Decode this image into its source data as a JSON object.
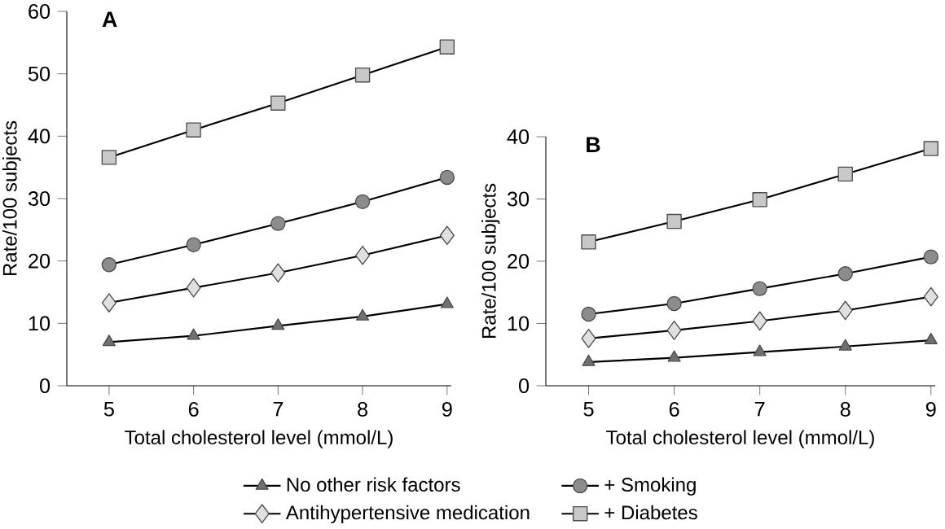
{
  "chart_data": [
    {
      "type": "line",
      "title": "A",
      "xlabel": "Total cholesterol level (mmol/L)",
      "ylabel": "Rate/100 subjects",
      "x": [
        5,
        6,
        7,
        8,
        9
      ],
      "xlim": [
        4.5,
        9.05
      ],
      "ylim": [
        0,
        60
      ],
      "xticks": [
        5,
        6,
        7,
        8,
        9
      ],
      "yticks": [
        0,
        10,
        20,
        30,
        40,
        50,
        60
      ],
      "legend": "bottom",
      "series": [
        {
          "name": "No other risk factors",
          "color": "#707070",
          "marker": "triangle",
          "values": [
            7.0,
            8.0,
            9.6,
            11.1,
            13.1
          ]
        },
        {
          "name": "+ Smoking",
          "color": "#8c8c8c",
          "marker": "circle",
          "values": [
            19.4,
            22.6,
            26.0,
            29.5,
            33.4
          ]
        },
        {
          "name": "Antihypertensive medication",
          "color": "#e0e0e0",
          "marker": "diamond",
          "values": [
            13.3,
            15.7,
            18.1,
            20.9,
            24.1
          ]
        },
        {
          "name": "+ Diabetes",
          "color": "#c8c8c8",
          "marker": "square",
          "values": [
            36.6,
            41.0,
            45.3,
            49.8,
            54.3
          ]
        }
      ]
    },
    {
      "type": "line",
      "title": "B",
      "xlabel": "Total cholesterol level (mmol/L)",
      "ylabel": "Rate/100 subjects",
      "x": [
        5,
        6,
        7,
        8,
        9
      ],
      "xlim": [
        4.5,
        9.05
      ],
      "ylim": [
        0,
        40
      ],
      "xticks": [
        5,
        6,
        7,
        8,
        9
      ],
      "yticks": [
        0,
        10,
        20,
        30,
        40
      ],
      "series": [
        {
          "color": "#707070",
          "marker": "triangle",
          "values": [
            3.8,
            4.5,
            5.4,
            6.3,
            7.3
          ]
        },
        {
          "color": "#e0e0e0",
          "marker": "diamond",
          "values": [
            7.6,
            8.9,
            10.4,
            12.1,
            14.3
          ]
        },
        {
          "color": "#8c8c8c",
          "marker": "circle",
          "values": [
            11.5,
            13.2,
            15.6,
            18.0,
            20.7
          ]
        },
        {
          "color": "#c8c8c8",
          "marker": "square",
          "values": [
            23.1,
            26.4,
            29.9,
            34.0,
            38.1
          ]
        }
      ]
    }
  ]
}
